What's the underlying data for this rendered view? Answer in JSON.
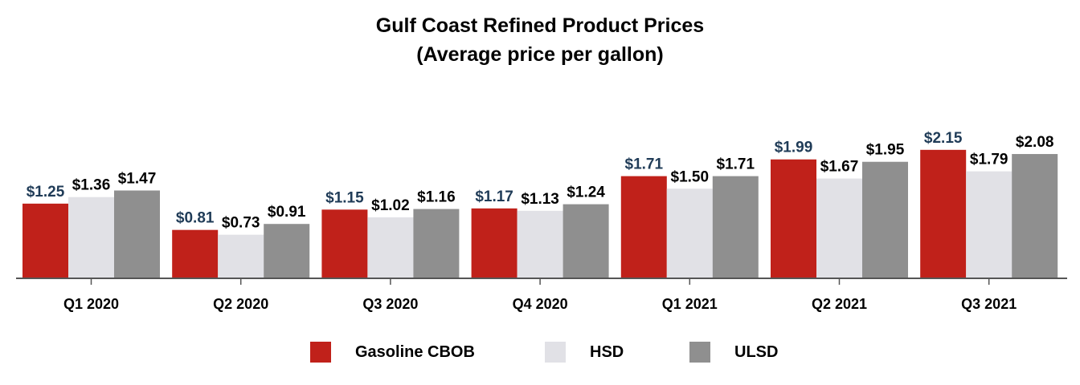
{
  "chart_data": {
    "type": "bar",
    "title_line1": "Gulf Coast Refined Product Prices",
    "title_line2": "(Average price per gallon)",
    "xlabel": "",
    "ylabel": "",
    "ylim": [
      0,
      2.5
    ],
    "categories": [
      "Q1 2020",
      "Q2 2020",
      "Q3 2020",
      "Q4 2020",
      "Q1 2021",
      "Q2 2021",
      "Q3 2021"
    ],
    "series": [
      {
        "name": "Gasoline CBOB",
        "color": "#c0211a",
        "label_color": "#1f3b57",
        "values": [
          1.25,
          0.81,
          1.15,
          1.17,
          1.71,
          1.99,
          2.15
        ],
        "labels": [
          "$1.25",
          "$0.81",
          "$1.15",
          "$1.17",
          "$1.71",
          "$1.99",
          "$2.15"
        ]
      },
      {
        "name": "HSD",
        "color": "#e1e1e6",
        "label_color": "#000000",
        "values": [
          1.36,
          0.73,
          1.02,
          1.13,
          1.5,
          1.67,
          1.79
        ],
        "labels": [
          "$1.36",
          "$0.73",
          "$1.02",
          "$1.13",
          "$1.50",
          "$1.67",
          "$1.79"
        ]
      },
      {
        "name": "ULSD",
        "color": "#8f8f8f",
        "label_color": "#000000",
        "values": [
          1.47,
          0.91,
          1.16,
          1.24,
          1.71,
          1.95,
          2.08
        ],
        "labels": [
          "$1.47",
          "$0.91",
          "$1.16",
          "$1.24",
          "$1.71",
          "$1.95",
          "$2.08"
        ]
      }
    ],
    "legend_position": "bottom",
    "grid": false
  }
}
